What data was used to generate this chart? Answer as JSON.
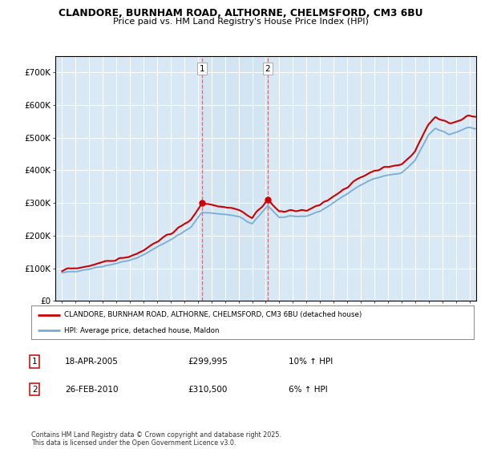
{
  "title1": "CLANDORE, BURNHAM ROAD, ALTHORNE, CHELMSFORD, CM3 6BU",
  "title2": "Price paid vs. HM Land Registry's House Price Index (HPI)",
  "legend_label_red": "CLANDORE, BURNHAM ROAD, ALTHORNE, CHELMSFORD, CM3 6BU (detached house)",
  "legend_label_blue": "HPI: Average price, detached house, Maldon",
  "footer": "Contains HM Land Registry data © Crown copyright and database right 2025.\nThis data is licensed under the Open Government Licence v3.0.",
  "annotation1_label": "1",
  "annotation1_date": "18-APR-2005",
  "annotation1_price": "£299,995",
  "annotation1_hpi": "10% ↑ HPI",
  "annotation2_label": "2",
  "annotation2_date": "26-FEB-2010",
  "annotation2_price": "£310,500",
  "annotation2_hpi": "6% ↑ HPI",
  "sale1_year": 2005.3,
  "sale1_price": 299995,
  "sale2_year": 2010.15,
  "sale2_price": 310500,
  "red_color": "#cc0000",
  "blue_color": "#7aadd4",
  "vline_color": "#cc6666",
  "bg_color": "#d8e8f5",
  "plot_bg": "#ffffff",
  "ylim_max": 750000,
  "ylim_min": 0
}
